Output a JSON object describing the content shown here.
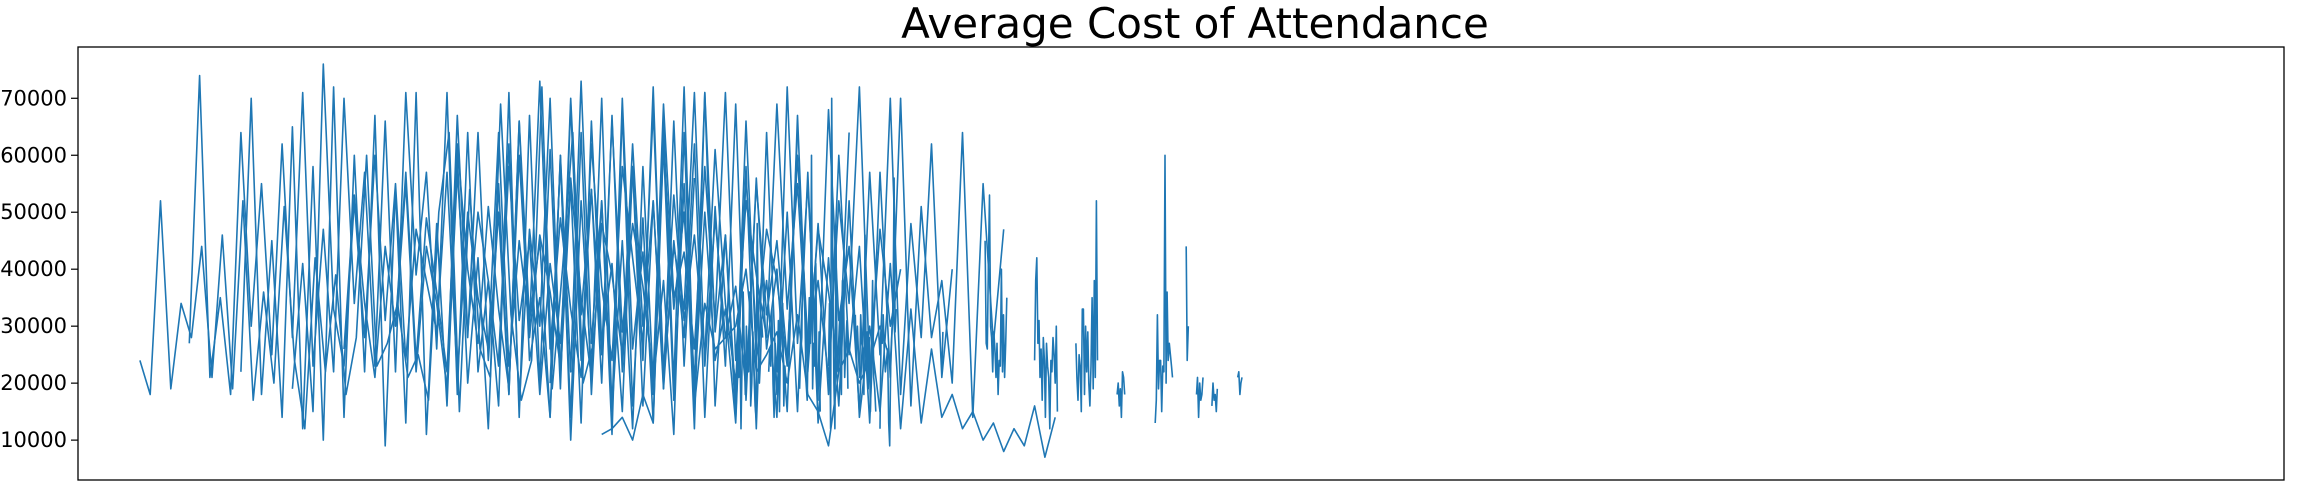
{
  "chart_data": {
    "type": "line",
    "title": "Average Cost of Attendance",
    "xlabel": "",
    "ylabel": "",
    "x_tick_labels": "none",
    "grid": false,
    "legend": "none",
    "line_color": "#1f77b4",
    "yticks": [
      10000,
      20000,
      30000,
      40000,
      50000,
      60000,
      70000
    ],
    "ytick_labels": [
      "10000",
      "20000",
      "30000",
      "40000",
      "50000",
      "60000",
      "70000"
    ],
    "ylim": [
      3000,
      79000
    ],
    "xlim": [
      -60,
      2080
    ],
    "series": [
      {
        "name": "",
        "segments": [
          {
            "x_start": 0,
            "values": [
              24000,
              18000,
              52000,
              19000,
              34000,
              28000,
              44000,
              21000,
              46000,
              19000,
              52000,
              17000,
              36000,
              20000,
              51000,
              24000,
              12000,
              42000,
              22000,
              39000,
              18000,
              28000,
              60000,
              23000,
              27000,
              34000,
              21000,
              25000,
              17000,
              50000,
              64000,
              15000,
              54000,
              26000,
              21000,
              69000,
              32000,
              17000,
              24000,
              72000,
              19000,
              40000,
              64000,
              20000,
              27000
            ]
          },
          {
            "x_start": 48,
            "values": [
              27000,
              74000,
              21000,
              35000,
              18000,
              64000,
              30000,
              55000,
              25000,
              62000,
              28000,
              71000,
              23000,
              47000,
              22000,
              70000,
              34000,
              57000,
              23000,
              66000,
              22000,
              71000,
              39000,
              57000,
              26000,
              71000,
              18000,
              64000,
              22000,
              38000,
              16000,
              71000,
              14000,
              67000,
              20000,
              61000,
              19000,
              69000,
              24000,
              54000,
              20000,
              67000,
              22000,
              58000,
              16000,
              52000,
              19000,
              66000,
              23000,
              56000
            ]
          },
          {
            "x_start": 98,
            "values": [
              22000,
              70000,
              18000,
              45000,
              14000,
              65000,
              12000,
              58000,
              10000,
              72000,
              14000,
              60000,
              22000,
              67000,
              9000,
              54000,
              13000,
              71000,
              11000,
              48000,
              16000,
              60000,
              20000,
              42000,
              12000,
              55000,
              18000,
              66000,
              24000,
              35000,
              14000,
              60000,
              10000,
              52000,
              22000,
              70000,
              15000,
              45000,
              12000,
              58000,
              20000,
              38000,
              11000,
              64000,
              18000,
              50000,
              24000,
              33000,
              13000,
              57000
            ]
          },
          {
            "x_start": 148,
            "values": [
              19000,
              41000,
              15000,
              76000,
              33000,
              23000,
              52000,
              28000,
              60000,
              31000,
              55000,
              24000,
              47000,
              38000,
              29000,
              57000,
              21000,
              50000,
              35000,
              26000,
              64000,
              23000,
              45000,
              30000,
              73000,
              26000,
              49000,
              33000,
              21000,
              62000,
              37000,
              24000,
              58000,
              42000,
              27000,
              68000,
              22000,
              53000,
              31000,
              46000,
              25000,
              61000,
              34000,
              20000,
              56000,
              29000,
              47000,
              38000,
              23000,
              64000
            ]
          },
          {
            "x_start": 198,
            "values": [
              26000,
              53000,
              34000,
              21000,
              44000,
              30000,
              57000,
              24000,
              49000,
              36000,
              22000,
              62000,
              40000,
              27000,
              51000,
              33000,
              19000,
              60000,
              28000,
              46000,
              36000,
              23000,
              70000,
              32000,
              54000,
              25000,
              66000,
              29000,
              48000,
              37000,
              21000,
              69000,
              35000,
              43000,
              26000,
              58000,
              31000,
              71000,
              24000,
              52000,
              39000,
              28000,
              69000,
              33000,
              55000,
              24000,
              47000,
              36000,
              22000,
              64000
            ]
          },
          {
            "x_start": 248,
            "values": [
              30000,
              55000,
              22000,
              44000,
              34000,
              19000,
              67000,
              29000,
              50000,
              38000,
              23000,
              58000,
              31000,
              45000,
              18000,
              41000,
              27000,
              56000,
              35000,
              21000,
              48000,
              39000,
              25000,
              62000,
              30000,
              52000,
              20000,
              44000,
              33000,
              71000,
              23000,
              49000,
              28000,
              37000,
              19000,
              55000,
              32000,
              45000,
              24000,
              60000,
              27000,
              38000,
              21000,
              52000,
              34000,
              72000,
              22000,
              47000,
              30000,
              40000
            ]
          },
          {
            "x_start": 298,
            "values": [
              19000,
              57000,
              28000,
              64000,
              24000,
              50000,
              18000,
              66000,
              31000,
              45000,
              14000,
              60000,
              22000,
              73000,
              27000,
              52000,
              15000,
              70000,
              26000,
              43000,
              18000,
              62000,
              33000,
              50000,
              20000,
              71000,
              29000,
              46000,
              17000,
              66000,
              24000,
              38000,
              14000,
              72000,
              27000,
              55000,
              19000,
              68000,
              31000,
              44000,
              15000,
              57000,
              25000,
              70000,
              18000,
              48000,
              28000,
              62000,
              21000,
              40000
            ]
          },
          {
            "x_start": 348,
            "values": [
              24000,
              62000,
              16000,
              47000,
              30000,
              70000,
              21000,
              55000,
              13000,
              66000,
              27000,
              41000,
              15000,
              58000,
              24000,
              72000,
              19000,
              45000,
              28000,
              62000,
              14000,
              51000,
              23000,
              69000,
              17000,
              56000,
              26000,
              40000,
              15000,
              67000,
              22000,
              48000,
              18000,
              60000,
              25000,
              44000,
              13000,
              57000,
              21000,
              70000,
              16000,
              51000,
              28000,
              38000,
              20000,
              64000,
              14000,
              55000,
              27000,
              47000
            ]
          },
          {
            "x_start": 398,
            "values": [
              20000,
              59000,
              14000,
              64000,
              18000,
              52000,
              11000,
              68000,
              16000,
              49000,
              13000,
              62000,
              17000,
              55000,
              12000,
              71000,
              16000,
              46000,
              14000,
              58000,
              12000,
              64000,
              18000,
              50000,
              15000,
              57000,
              13000,
              42000,
              16000,
              52000,
              14000,
              30000,
              15000,
              41000,
              12000,
              33000,
              13000,
              26000,
              14000,
              18000,
              12000,
              15000,
              10000,
              13000,
              8000,
              12000,
              9000,
              16000,
              7000,
              14000
            ]
          },
          {
            "x_start": 448,
            "values": [
              11000,
              12000,
              14000,
              10000,
              18000,
              13000,
              66000,
              20000,
              72000,
              16000,
              34000,
              26000,
              28000,
              30000,
              40000,
              22000,
              25000,
              29000,
              20000,
              32000,
              18000,
              15000,
              9000,
              22000,
              26000,
              20000,
              24000,
              30000,
              24000
            ]
          }
        ]
      },
      {
        "name": "",
        "segments": [
          {
            "x_start": 580,
            "values": [
              32000,
              21000,
              28000,
              12000,
              24000,
              36000,
              26000,
              18000,
              30000,
              24000,
              22000,
              36000,
              16000,
              20000,
              29000,
              22000,
              16000,
              14000,
              48000,
              30000,
              20000,
              24000,
              31000,
              28000
            ]
          },
          {
            "x_start": 610,
            "values": [
              22000,
              26000,
              23000,
              33000,
              20000,
              14000,
              27000,
              24000,
              22000,
              31000,
              15000,
              29000,
              28000,
              34000,
              16000,
              23000,
              20000
            ]
          },
          {
            "x_start": 640,
            "values": [
              19000,
              25000,
              28000,
              43000,
              39000,
              31000,
              20000,
              17000,
              28000,
              35000,
              27000,
              60000,
              19000,
              27000,
              23000,
              41000,
              21000,
              17000,
              29000,
              15000
            ]
          },
          {
            "x_start": 668,
            "values": [
              23000,
              34000,
              12000,
              70000,
              40000,
              20000,
              12000,
              47000,
              22000,
              25000,
              30000,
              33000,
              18000,
              38000,
              35000,
              21000,
              27000,
              31000,
              19000
            ]
          },
          {
            "x_start": 694,
            "values": [
              32000,
              24000,
              30000,
              25000,
              21000,
              32000,
              27000,
              26000,
              18000,
              46000,
              23000,
              29000,
              19000,
              28000,
              15000,
              26000,
              38000,
              21000,
              19000,
              15000
            ]
          },
          {
            "x_start": 718,
            "values": [
              12000,
              29000,
              27000,
              32000,
              25000,
              22000,
              24000,
              26000,
              13000,
              9000,
              25000,
              29000,
              32000,
              56000,
              29000,
              33000
            ]
          },
          {
            "x_start": 778,
            "values": [
              22000,
              29000
            ]
          },
          {
            "x_start": 820,
            "values": [
              45000,
              27000,
              26000,
              41000,
              53000,
              30000,
              28000,
              22000,
              29000,
              26000,
              21000,
              27000,
              18000,
              24000,
              23000,
              40000,
              22000,
              32000,
              21000,
              27000,
              35000
            ]
          },
          {
            "x_start": 868,
            "values": [
              24000,
              38000,
              42000,
              27000,
              31000,
              21000,
              26000,
              17000,
              28000,
              24000,
              14000,
              27000,
              23000,
              21000,
              12000,
              24000,
              22000,
              28000,
              25000,
              20000,
              30000,
              15000
            ]
          },
          {
            "x_start": 908,
            "values": [
              27000,
              21000,
              17000,
              25000,
              23000,
              15000,
              33000,
              33000,
              18000,
              30000,
              22000,
              29000,
              20000,
              16000,
              23000,
              35000,
              19000,
              38000,
              21000,
              52000,
              24000
            ]
          },
          {
            "x_start": 948,
            "values": [
              18000,
              20000,
              16000,
              19000,
              14000,
              22000,
              21000,
              18000
            ]
          },
          {
            "x_start": 985,
            "values": [
              13000,
              17000,
              32000,
              19000,
              24000,
              24000,
              15000,
              23000,
              22000,
              60000,
              20000,
              36000,
              24000,
              27000,
              25000,
              23000,
              21000
            ]
          },
          {
            "x_start": 1015,
            "values": [
              44000,
              24000,
              30000
            ]
          },
          {
            "x_start": 1025,
            "values": [
              18000,
              21000,
              14000,
              20000,
              17000,
              18000,
              21000
            ]
          },
          {
            "x_start": 1040,
            "values": [
              16000,
              20000,
              17000,
              18000,
              15000,
              19000
            ]
          },
          {
            "x_start": 1065,
            "values": [
              21000,
              22000,
              18000,
              20000,
              21000
            ]
          }
        ]
      }
    ]
  }
}
